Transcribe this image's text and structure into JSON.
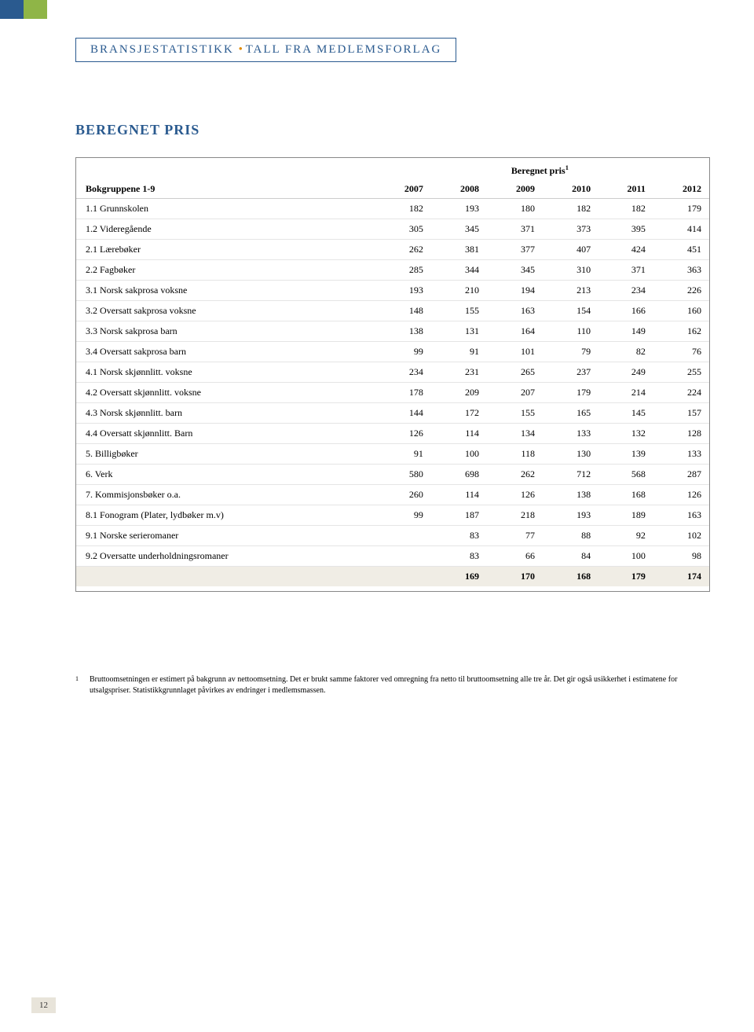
{
  "header": {
    "left": "BRANSJESTATISTIKK",
    "right": "TALL FRA MEDLEMSFORLAG"
  },
  "section_title": "BEREGNET PRIS",
  "table": {
    "superheader": "Beregnet pris",
    "superheader_sup": "1",
    "row_header": "Bokgruppene 1-9",
    "columns": [
      "2007",
      "2008",
      "2009",
      "2010",
      "2011",
      "2012"
    ],
    "rows": [
      {
        "label": "1.1 Grunnskolen",
        "v": [
          "182",
          "193",
          "180",
          "182",
          "182",
          "179"
        ]
      },
      {
        "label": "1.2 Videregående",
        "v": [
          "305",
          "345",
          "371",
          "373",
          "395",
          "414"
        ]
      },
      {
        "label": "2.1 Lærebøker",
        "v": [
          "262",
          "381",
          "377",
          "407",
          "424",
          "451"
        ]
      },
      {
        "label": "2.2 Fagbøker",
        "v": [
          "285",
          "344",
          "345",
          "310",
          "371",
          "363"
        ]
      },
      {
        "label": "3.1 Norsk sakprosa voksne",
        "v": [
          "193",
          "210",
          "194",
          "213",
          "234",
          "226"
        ]
      },
      {
        "label": "3.2 Oversatt sakprosa voksne",
        "v": [
          "148",
          "155",
          "163",
          "154",
          "166",
          "160"
        ]
      },
      {
        "label": "3.3 Norsk sakprosa barn",
        "v": [
          "138",
          "131",
          "164",
          "110",
          "149",
          "162"
        ]
      },
      {
        "label": "3.4 Oversatt sakprosa barn",
        "v": [
          "99",
          "91",
          "101",
          "79",
          "82",
          "76"
        ]
      },
      {
        "label": "4.1 Norsk skjønnlitt. voksne",
        "v": [
          "234",
          "231",
          "265",
          "237",
          "249",
          "255"
        ]
      },
      {
        "label": "4.2 Oversatt skjønnlitt. voksne",
        "v": [
          "178",
          "209",
          "207",
          "179",
          "214",
          "224"
        ]
      },
      {
        "label": "4.3 Norsk skjønnlitt. barn",
        "v": [
          "144",
          "172",
          "155",
          "165",
          "145",
          "157"
        ]
      },
      {
        "label": "4.4 Oversatt skjønnlitt. Barn",
        "v": [
          "126",
          "114",
          "134",
          "133",
          "132",
          "128"
        ]
      },
      {
        "label": "5.   Billigbøker",
        "v": [
          "91",
          "100",
          "118",
          "130",
          "139",
          "133"
        ]
      },
      {
        "label": "6.   Verk",
        "v": [
          "580",
          "698",
          "262",
          "712",
          "568",
          "287"
        ]
      },
      {
        "label": "7.   Kommisjonsbøker o.a.",
        "v": [
          "260",
          "114",
          "126",
          "138",
          "168",
          "126"
        ]
      },
      {
        "label": "8.1 Fonogram (Plater, lydbøker m.v)",
        "v": [
          "99",
          "187",
          "218",
          "193",
          "189",
          "163"
        ]
      },
      {
        "label": "9.1 Norske serieromaner",
        "v": [
          "",
          "83",
          "77",
          "88",
          "92",
          "102"
        ]
      },
      {
        "label": "9.2 Oversatte underholdningsromaner",
        "v": [
          "",
          "83",
          "66",
          "84",
          "100",
          "98"
        ]
      }
    ],
    "total_row": {
      "label": "",
      "v": [
        "",
        "169",
        "170",
        "168",
        "179",
        "174"
      ]
    }
  },
  "footnote": {
    "num": "1",
    "text": "Bruttoomsetningen er estimert på bakgrunn av nettoomsetning. Det er brukt samme faktorer ved omregning fra netto til bruttoomsetning alle tre år. Det gir også usikkerhet i estimatene for utsalgspriser. Statistikkgrunnlaget påvirkes av endringer i medlemsmassen."
  },
  "page_number": "12",
  "colors": {
    "brand_blue": "#2a5a8f",
    "brand_green": "#8fb547",
    "accent_orange": "#e08a00",
    "total_bg": "#f0ede5",
    "pagenum_bg": "#e8e4da"
  }
}
